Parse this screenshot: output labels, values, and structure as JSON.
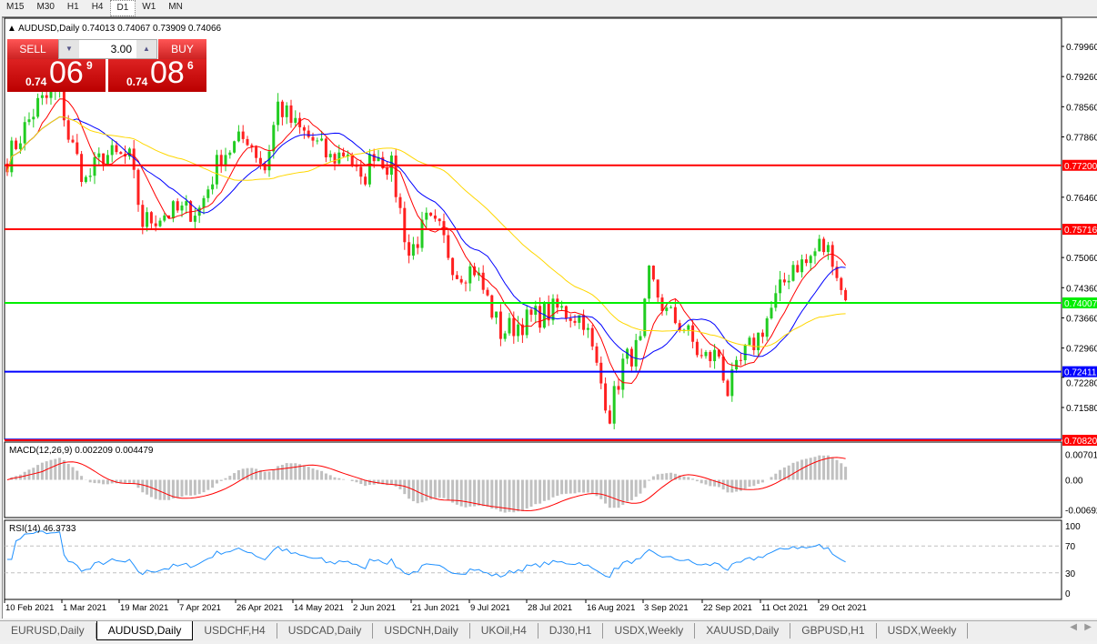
{
  "timeframes": [
    "M15",
    "M30",
    "H1",
    "H4",
    "D1",
    "W1",
    "MN"
  ],
  "active_timeframe": "D1",
  "chart": {
    "symbol_title": "AUDUSD,Daily",
    "ohlc": "0.74013 0.74067 0.73909 0.74066"
  },
  "trade_panel": {
    "sell_label": "SELL",
    "buy_label": "BUY",
    "lot": "3.00",
    "sell": {
      "big": "0.74",
      "main": "06",
      "small": "9"
    },
    "buy": {
      "big": "0.74",
      "main": "08",
      "small": "6"
    }
  },
  "price_axis": [
    "0.79960",
    "0.79260",
    "0.78560",
    "0.77860",
    "0.76460",
    "0.75060",
    "0.74360",
    "0.73660",
    "0.72960",
    "0.72280",
    "0.71580"
  ],
  "levels": [
    {
      "price": 0.772,
      "label": "0.77200",
      "color": "#ff0000"
    },
    {
      "price": 0.75716,
      "label": "0.75716",
      "color": "#ff0000"
    },
    {
      "price": 0.74007,
      "label": "0.74007",
      "color": "#00ee00"
    },
    {
      "price": 0.72411,
      "label": "0.72411",
      "color": "#0000ff"
    },
    {
      "price": 0.70836,
      "label": "",
      "color": "#0000ff"
    },
    {
      "price": 0.7082,
      "label": "0.70820",
      "color": "#ff0000"
    }
  ],
  "macd": {
    "title": "MACD(12,26,9) 0.002209 0.004479",
    "axis": [
      "0.007015",
      "0.00",
      "-0.00692"
    ],
    "range": [
      -0.0075,
      0.0075
    ]
  },
  "rsi": {
    "title": "RSI(14) 46.3733",
    "axis": [
      "100",
      "70",
      "30",
      "0"
    ],
    "levels": [
      70,
      30
    ]
  },
  "date_axis": [
    "10 Feb 2021",
    "1 Mar 2021",
    "19 Mar 2021",
    "7 Apr 2021",
    "26 Apr 2021",
    "14 May 2021",
    "2 Jun 2021",
    "21 Jun 2021",
    "9 Jul 2021",
    "28 Jul 2021",
    "16 Aug 2021",
    "3 Sep 2021",
    "22 Sep 2021",
    "11 Oct 2021",
    "29 Oct 2021"
  ],
  "chart_data": {
    "type": "candlestick",
    "symbol": "AUDUSD",
    "timeframe": "Daily",
    "ylim": [
      0.7082,
      0.802
    ],
    "moving_averages": [
      {
        "color": "#ff0000"
      },
      {
        "color": "#0000ff"
      },
      {
        "color": "#ffd700"
      }
    ],
    "close_path": [
      [
        0,
        0.7734
      ],
      [
        7,
        0.7861
      ],
      [
        12,
        0.7893
      ],
      [
        14,
        0.7787
      ],
      [
        18,
        0.7682
      ],
      [
        22,
        0.7745
      ],
      [
        28,
        0.7734
      ],
      [
        31,
        0.7587
      ],
      [
        36,
        0.7608
      ],
      [
        44,
        0.7618
      ],
      [
        49,
        0.7745
      ],
      [
        55,
        0.7787
      ],
      [
        59,
        0.7713
      ],
      [
        62,
        0.7861
      ],
      [
        66,
        0.7808
      ],
      [
        70,
        0.7777
      ],
      [
        74,
        0.7734
      ],
      [
        78,
        0.7755
      ],
      [
        81,
        0.7671
      ],
      [
        84,
        0.7755
      ],
      [
        88,
        0.7713
      ],
      [
        92,
        0.7513
      ],
      [
        96,
        0.7587
      ],
      [
        99,
        0.7566
      ],
      [
        103,
        0.7471
      ],
      [
        107,
        0.7481
      ],
      [
        113,
        0.7333
      ],
      [
        120,
        0.7365
      ],
      [
        126,
        0.7386
      ],
      [
        132,
        0.7365
      ],
      [
        135,
        0.7249
      ],
      [
        138,
        0.7144
      ],
      [
        141,
        0.726
      ],
      [
        145,
        0.7302
      ],
      [
        147,
        0.746
      ],
      [
        151,
        0.7376
      ],
      [
        155,
        0.7344
      ],
      [
        159,
        0.727
      ],
      [
        163,
        0.7281
      ],
      [
        165,
        0.7196
      ],
      [
        169,
        0.7281
      ],
      [
        172,
        0.7323
      ],
      [
        176,
        0.7407
      ],
      [
        180,
        0.7492
      ],
      [
        183,
        0.7492
      ],
      [
        186,
        0.7534
      ],
      [
        189,
        0.7513
      ],
      [
        191,
        0.7428
      ],
      [
        192,
        0.7407
      ]
    ]
  },
  "tabs": [
    "EURUSD,Daily",
    "AUDUSD,Daily",
    "USDCHF,H4",
    "USDCAD,Daily",
    "USDCNH,Daily",
    "UKOil,H4",
    "DJ30,H1",
    "USDX,Weekly",
    "XAUUSD,Daily",
    "GBPUSD,H1",
    "USDX,Weekly"
  ],
  "active_tab": "AUDUSD,Daily"
}
